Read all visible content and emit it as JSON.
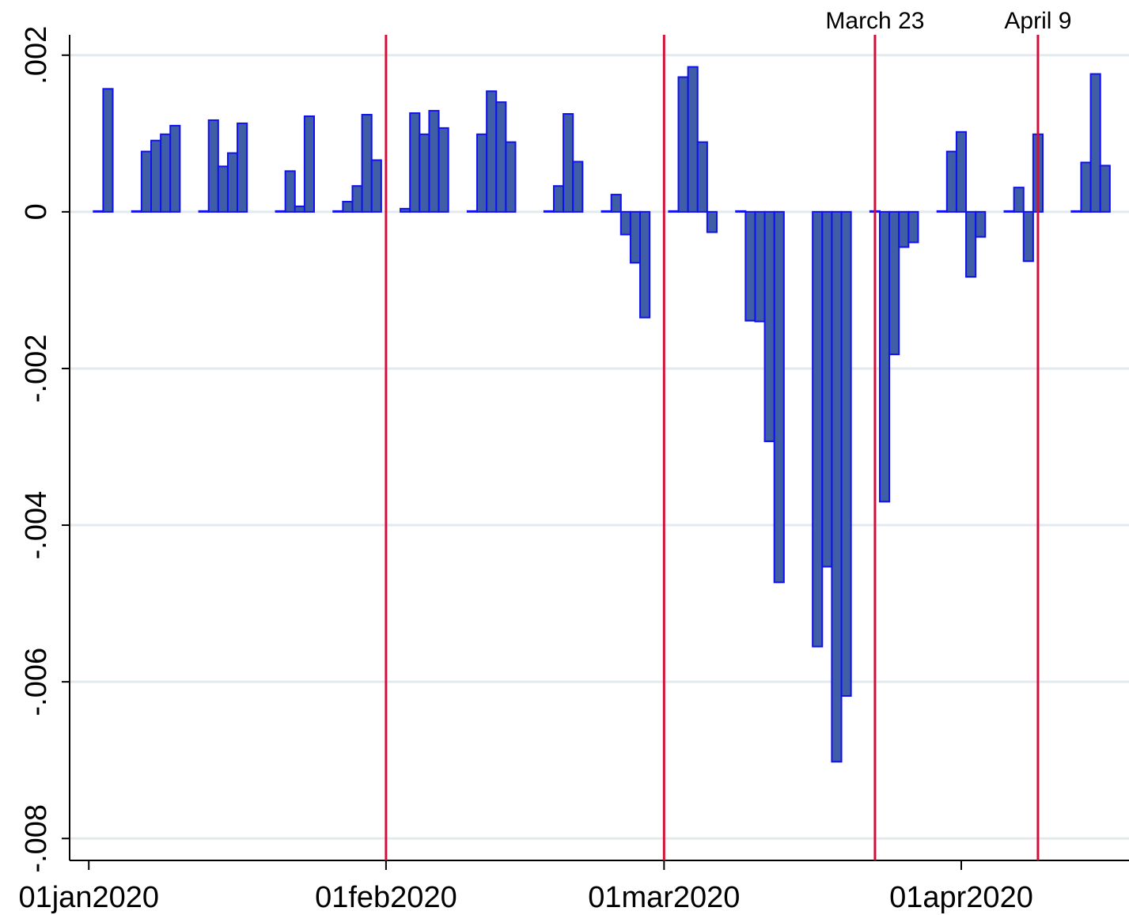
{
  "chart_data": {
    "type": "bar",
    "x": [
      "2020-01-02",
      "2020-01-03",
      "2020-01-06",
      "2020-01-07",
      "2020-01-08",
      "2020-01-09",
      "2020-01-10",
      "2020-01-13",
      "2020-01-14",
      "2020-01-15",
      "2020-01-16",
      "2020-01-17",
      "2020-01-21",
      "2020-01-22",
      "2020-01-23",
      "2020-01-24",
      "2020-01-27",
      "2020-01-28",
      "2020-01-29",
      "2020-01-30",
      "2020-01-31",
      "2020-02-03",
      "2020-02-04",
      "2020-02-05",
      "2020-02-06",
      "2020-02-07",
      "2020-02-10",
      "2020-02-11",
      "2020-02-12",
      "2020-02-13",
      "2020-02-14",
      "2020-02-18",
      "2020-02-19",
      "2020-02-20",
      "2020-02-21",
      "2020-02-24",
      "2020-02-25",
      "2020-02-26",
      "2020-02-27",
      "2020-02-28",
      "2020-03-02",
      "2020-03-03",
      "2020-03-04",
      "2020-03-05",
      "2020-03-06",
      "2020-03-09",
      "2020-03-10",
      "2020-03-11",
      "2020-03-12",
      "2020-03-13",
      "2020-03-17",
      "2020-03-18",
      "2020-03-19",
      "2020-03-20",
      "2020-03-23",
      "2020-03-24",
      "2020-03-25",
      "2020-03-26",
      "2020-03-27",
      "2020-03-30",
      "2020-03-31",
      "2020-04-01",
      "2020-04-02",
      "2020-04-03",
      "2020-04-06",
      "2020-04-07",
      "2020-04-08",
      "2020-04-09",
      "2020-04-13",
      "2020-04-14",
      "2020-04-15",
      "2020-04-16"
    ],
    "values": [
      1e-05,
      0.00157,
      1e-05,
      0.00077,
      0.00091,
      0.00099,
      0.0011,
      1e-05,
      0.00117,
      0.00058,
      0.00075,
      0.00113,
      1e-05,
      0.00052,
      7e-05,
      0.00122,
      1e-05,
      0.00013,
      0.00033,
      0.00124,
      0.00066,
      4e-05,
      0.00126,
      0.00099,
      0.00129,
      0.00107,
      1e-05,
      0.00099,
      0.00154,
      0.0014,
      0.00089,
      1e-05,
      0.00033,
      0.00125,
      0.00064,
      1e-05,
      0.00022,
      -0.00029,
      -0.00065,
      -0.00135,
      1e-05,
      0.00172,
      0.00185,
      0.00089,
      -0.00026,
      1e-05,
      -0.00139,
      -0.0014,
      -0.00293,
      -0.00473,
      -0.00555,
      -0.00453,
      -0.00702,
      -0.00618,
      1e-05,
      -0.0037,
      -0.00182,
      -0.00045,
      -0.00039,
      1e-05,
      0.00077,
      0.00102,
      -0.00083,
      -0.00032,
      1e-05,
      0.00031,
      -0.00063,
      0.00099,
      1e-05,
      0.00063,
      0.00176,
      0.00059
    ],
    "color": "#3f5ea6",
    "edge_color": "#1010f0",
    "xlim": [
      "2019-12-30",
      "2020-04-18"
    ],
    "xticks": [
      {
        "value": "2020-01-01",
        "label": "01jan2020"
      },
      {
        "value": "2020-02-01",
        "label": "01feb2020"
      },
      {
        "value": "2020-03-01",
        "label": "01mar2020"
      },
      {
        "value": "2020-04-01",
        "label": "01apr2020"
      }
    ],
    "ylim": [
      -0.00828,
      0.00226
    ],
    "yticks": [
      {
        "value": 0.002,
        "label": ".002"
      },
      0,
      {
        "value": -0.002,
        "label": "-.002"
      },
      {
        "value": -0.004,
        "label": "-.004"
      },
      {
        "value": -0.006,
        "label": "-.006"
      },
      {
        "value": -0.008,
        "label": "-.008"
      }
    ],
    "grid": true,
    "vlines": [
      {
        "x": "2020-02-01"
      },
      {
        "x": "2020-03-01"
      },
      {
        "x": "2020-03-23",
        "label": "March 23"
      },
      {
        "x": "2020-04-09",
        "label": "April 9"
      }
    ],
    "vline_color": "#d0103a"
  }
}
